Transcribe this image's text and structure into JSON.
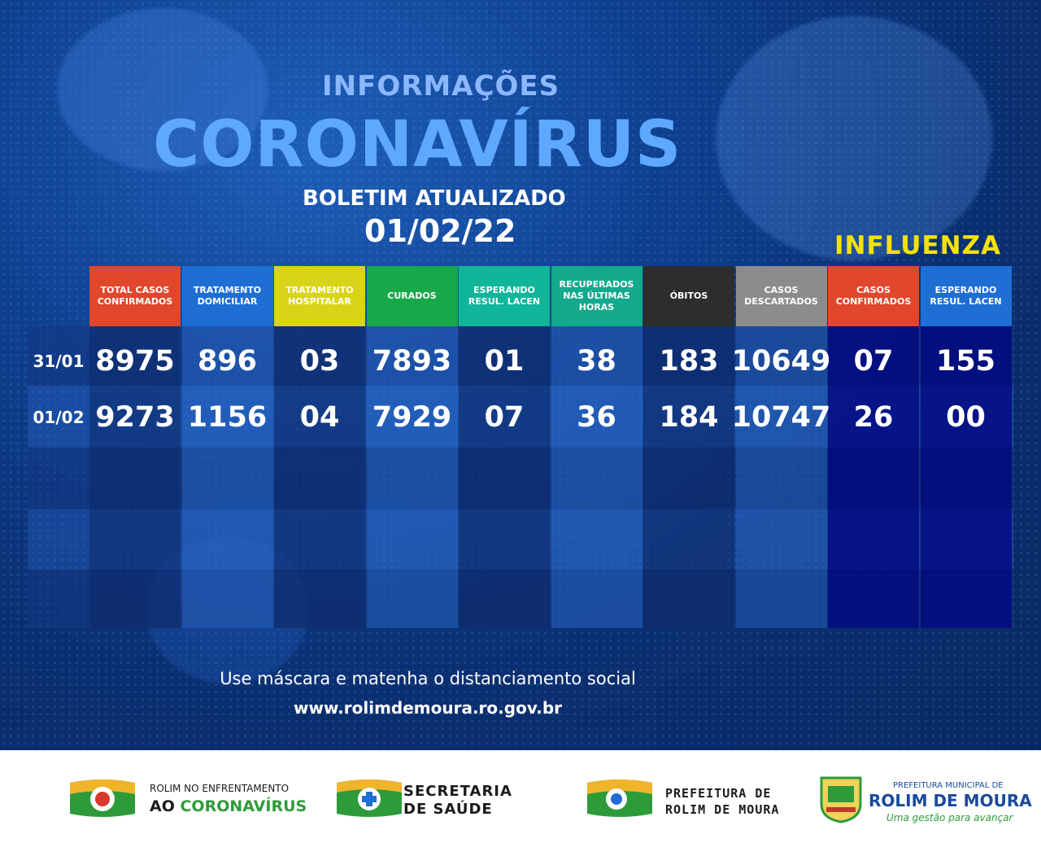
{
  "header": {
    "line1": "INFORMAÇÕES",
    "line2": "CORONAVÍRUS",
    "line3": "BOLETIM ATUALIZADO",
    "date": "01/02/22",
    "influenza_label": "INFLUENZA"
  },
  "table": {
    "columns": [
      {
        "label": "TOTAL CASOS CONFIRMADOS",
        "color": "#e0472c"
      },
      {
        "label": "TRATAMENTO DOMICILIAR",
        "color": "#1f6ed4"
      },
      {
        "label": "TRATAMENTO HOSPITALAR",
        "color": "#d9d41a"
      },
      {
        "label": "CURADOS",
        "color": "#17a84a"
      },
      {
        "label": "ESPERANDO RESUL. LACEN",
        "color": "#10b59a"
      },
      {
        "label": "RECUPERADOS NAS ÚLTIMAS HORAS",
        "color": "#12a98c"
      },
      {
        "label": "ÓBITOS",
        "color": "#2d2d2d"
      },
      {
        "label": "CASOS DESCARTADOS",
        "color": "#8c8c8c"
      },
      {
        "label": "CASOS CONFIRMADOS",
        "color": "#e0472c"
      },
      {
        "label": "ESPERANDO RESUL. LACEN",
        "color": "#1f6ed4"
      }
    ],
    "rows": [
      {
        "date": "31/01",
        "values": [
          "8975",
          "896",
          "03",
          "7893",
          "01",
          "38",
          "183",
          "10649",
          "07",
          "155"
        ]
      },
      {
        "date": "01/02",
        "values": [
          "9273",
          "1156",
          "04",
          "7929",
          "07",
          "36",
          "184",
          "10747",
          "26",
          "00"
        ]
      }
    ]
  },
  "footer_message": "Use máscara e matenha o distanciamento social",
  "website": "www.rolimdemoura.ro.gov.br",
  "logos": {
    "logo1_line1": "ROLIM NO ENFRENTAMENTO",
    "logo1_line2_a": "AO ",
    "logo1_line2_b": "CORONAVÍRUS",
    "logo2_line1": "SECRETARIA",
    "logo2_line2": "DE SAÚDE",
    "logo3_line1": "PREFEITURA DE",
    "logo3_line2": "ROLIM DE MOURA",
    "logo4_line1": "PREFEITURA MUNICIPAL DE",
    "logo4_line2": "ROLIM DE MOURA",
    "logo4_line3": "Uma gestão para avançar"
  }
}
